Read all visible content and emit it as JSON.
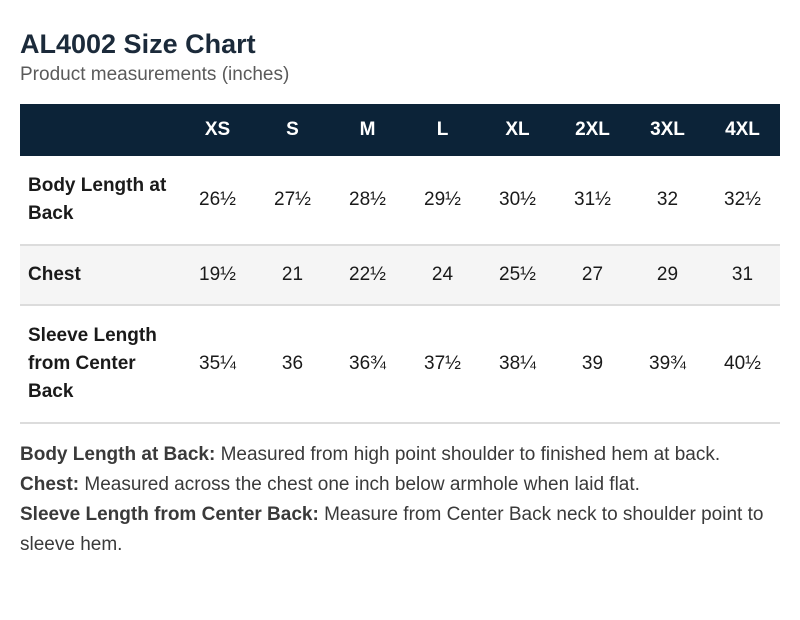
{
  "header": {
    "title": "AL4002 Size Chart",
    "subtitle": "Product measurements (inches)"
  },
  "table": {
    "columns": [
      "",
      "XS",
      "S",
      "M",
      "L",
      "XL",
      "2XL",
      "3XL",
      "4XL"
    ],
    "rows": [
      {
        "label": "Body Length at Back",
        "values": [
          "26½",
          "27½",
          "28½",
          "29½",
          "30½",
          "31½",
          "32",
          "32½"
        ]
      },
      {
        "label": "Chest",
        "values": [
          "19½",
          "21",
          "22½",
          "24",
          "25½",
          "27",
          "29",
          "31"
        ]
      },
      {
        "label": "Sleeve Length from Center Back",
        "values": [
          "35¼",
          "36",
          "36¾",
          "37½",
          "38¼",
          "39",
          "39¾",
          "40½"
        ]
      }
    ]
  },
  "notes": [
    {
      "term": "Body Length at Back:",
      "text": " Measured from high point shoulder to finished hem at back."
    },
    {
      "term": "Chest:",
      "text": " Measured across the chest one inch below armhole when laid flat."
    },
    {
      "term": "Sleeve Length from Center Back:",
      "text": " Measure from Center Back neck to shoulder point to sleeve hem."
    }
  ],
  "colors": {
    "header_bg": "#0c2338",
    "header_text": "#ffffff",
    "row_alt_bg": "#f5f5f5",
    "divider": "#dcdcdc"
  }
}
